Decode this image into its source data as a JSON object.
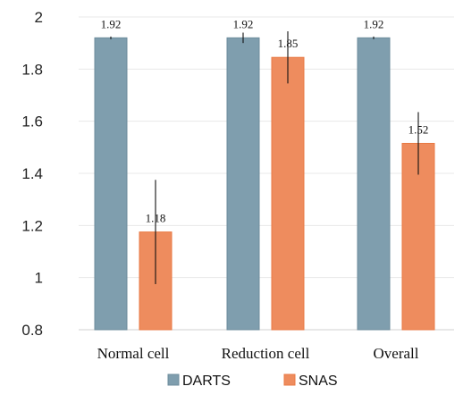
{
  "chart_data": {
    "type": "bar",
    "categories": [
      "Normal cell",
      "Reduction cell",
      "Overall"
    ],
    "series": [
      {
        "name": "DARTS",
        "color": "#7f9eae",
        "edge_color": "#6d8c9c",
        "values": [
          1.92,
          1.92,
          1.92
        ],
        "value_labels": [
          "1.92",
          "1.92",
          "1.92"
        ],
        "error": [
          0.005,
          0.02,
          0.005
        ]
      },
      {
        "name": "SNAS",
        "color": "#ee8c5e",
        "edge_color": "#e97a44",
        "values": [
          1.175,
          1.845,
          1.515
        ],
        "value_labels": [
          "1.18",
          "1.85",
          "1.52"
        ],
        "error": [
          0.2,
          0.1,
          0.12
        ]
      }
    ],
    "yticks": [
      "0.8",
      "1",
      "1.2",
      "1.4",
      "1.6",
      "1.8",
      "2"
    ],
    "ylim": [
      0.8,
      2.0
    ],
    "grid": true,
    "legend": "bottom"
  }
}
